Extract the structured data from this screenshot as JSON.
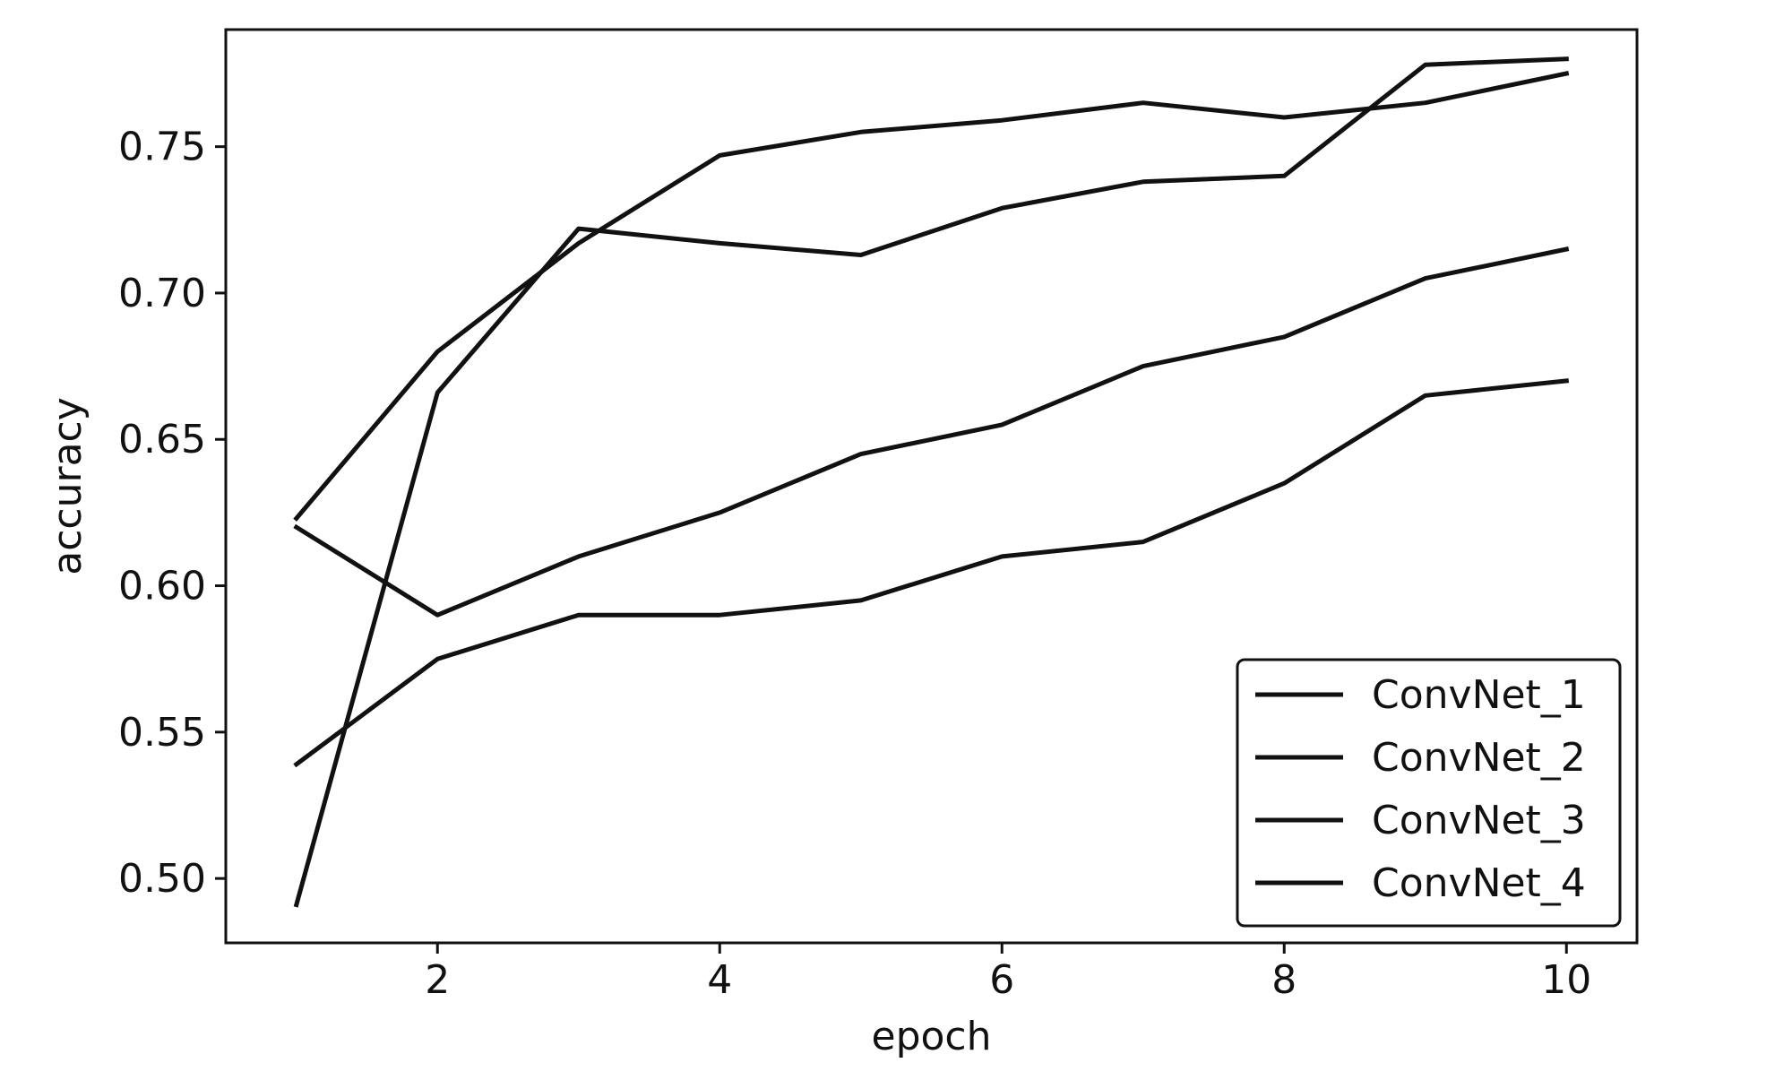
{
  "chart_data": {
    "type": "line",
    "title": "",
    "xlabel": "epoch",
    "ylabel": "accuracy",
    "xlim": [
      0.5,
      10.5
    ],
    "ylim": [
      0.478,
      0.79
    ],
    "xticks": [
      2,
      4,
      6,
      8,
      10
    ],
    "xtick_labels": [
      "2",
      "4",
      "6",
      "8",
      "10"
    ],
    "yticks": [
      0.5,
      0.55,
      0.6,
      0.65,
      0.7,
      0.75
    ],
    "ytick_labels": [
      "0.50",
      "0.55",
      "0.60",
      "0.65",
      "0.70",
      "0.75"
    ],
    "x": [
      1,
      2,
      3,
      4,
      5,
      6,
      7,
      8,
      9,
      10
    ],
    "series": [
      {
        "name": "ConvNet_1",
        "values": [
          0.623,
          0.68,
          0.717,
          0.747,
          0.755,
          0.759,
          0.765,
          0.76,
          0.765,
          0.775
        ]
      },
      {
        "name": "ConvNet_2",
        "values": [
          0.491,
          0.666,
          0.722,
          0.717,
          0.713,
          0.729,
          0.738,
          0.74,
          0.778,
          0.78
        ]
      },
      {
        "name": "ConvNet_3",
        "values": [
          0.62,
          0.59,
          0.61,
          0.625,
          0.645,
          0.655,
          0.675,
          0.685,
          0.705,
          0.715
        ]
      },
      {
        "name": "ConvNet_4",
        "values": [
          0.539,
          0.575,
          0.59,
          0.59,
          0.595,
          0.61,
          0.615,
          0.635,
          0.665,
          0.67
        ]
      }
    ],
    "line_color": "#111111",
    "grid": false,
    "legend_position": "lower-right"
  }
}
